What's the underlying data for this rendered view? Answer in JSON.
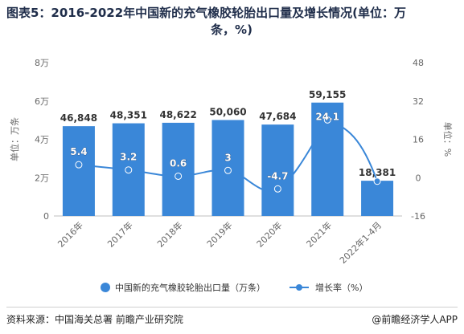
{
  "title_line1": "图表5：2016-2022年中国新的充气橡胶轮胎出口量及增长情况(单位：万",
  "title_line2": "条，%)",
  "footer": {
    "source": "资料来源：中国海关总署 前瞻产业研究院",
    "brand": "@前瞻经济学人APP"
  },
  "colors": {
    "bar": "#3a87d8",
    "line": "#3a87d8",
    "growth_label_bg": "#ffffff",
    "axis_text": "#666666",
    "title": "#1f2d4a"
  },
  "chart_data": {
    "type": "bar",
    "categories": [
      "2016年",
      "2017年",
      "2018年",
      "2019年",
      "2020年",
      "2021年",
      "2022年1-4月"
    ],
    "series": [
      {
        "name": "中国新的充气橡胶轮胎出口量（万条）",
        "type": "bar",
        "axis": "left",
        "values": [
          46848,
          48351,
          48622,
          50060,
          47684,
          59155,
          18381
        ],
        "labels": [
          "46,848",
          "48,351",
          "48,622",
          "50,060",
          "47,684",
          "59,155",
          "18,381"
        ]
      },
      {
        "name": "增长率（%）",
        "type": "line",
        "axis": "right",
        "values": [
          5.4,
          3.2,
          0.6,
          3,
          -4.7,
          24.1,
          null
        ],
        "labels": [
          "5.4",
          "3.2",
          "0.6",
          "3",
          "-4.7",
          "24.1",
          ""
        ]
      }
    ],
    "ylabel": "单位：万条",
    "y2label": "单位：%",
    "ylim": [
      0,
      80000
    ],
    "y2lim": [
      -16,
      48
    ],
    "yticks": [
      "0",
      "2万",
      "4万",
      "6万",
      "8万"
    ],
    "y2ticks": [
      "-16",
      "0",
      "16",
      "32",
      "48"
    ],
    "legend": "bottom",
    "grid": false
  }
}
